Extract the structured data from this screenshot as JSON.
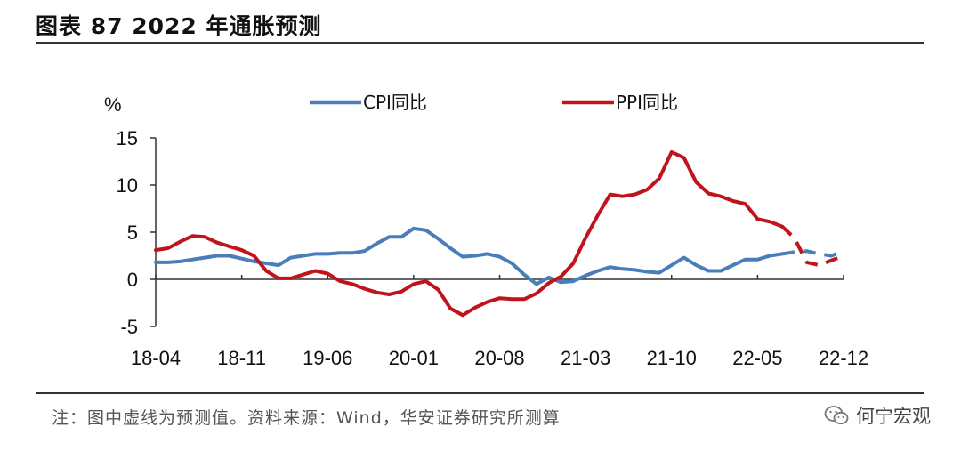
{
  "header": {
    "title": "图表 87 2022 年通胀预测"
  },
  "footer": {
    "note": "注：图中虚线为预测值。资料来源：Wind，华安证券研究所测算",
    "brand": "何宁宏观"
  },
  "colors": {
    "cpi": "#4a7ebb",
    "ppi": "#c0141c",
    "axis": "#333333"
  },
  "chart_data": {
    "type": "line",
    "ylabel": "%",
    "ylim": [
      -5,
      15
    ],
    "yticks": [
      15,
      10,
      5,
      0,
      -5
    ],
    "xlim": [
      "2018-04",
      "2022-12"
    ],
    "xtick_labels": [
      "18-04",
      "18-11",
      "19-06",
      "20-01",
      "20-08",
      "21-03",
      "21-10",
      "22-05",
      "22-12"
    ],
    "legend": [
      "CPI同比",
      "PPI同比"
    ],
    "legend_position": "top",
    "grid": false,
    "forecast_note": "dashed segments are forecasts",
    "series": [
      {
        "name": "CPI同比",
        "x": [
          "2018-04",
          "2018-05",
          "2018-06",
          "2018-07",
          "2018-08",
          "2018-09",
          "2018-10",
          "2018-11",
          "2018-12",
          "2019-01",
          "2019-02",
          "2019-03",
          "2019-04",
          "2019-05",
          "2019-06",
          "2019-07",
          "2019-08",
          "2019-09",
          "2019-10",
          "2019-11",
          "2019-12",
          "2020-01",
          "2020-02",
          "2020-03",
          "2020-04",
          "2020-05",
          "2020-06",
          "2020-07",
          "2020-08",
          "2020-09",
          "2020-10",
          "2020-11",
          "2020-12",
          "2021-01",
          "2021-02",
          "2021-03",
          "2021-04",
          "2021-05",
          "2021-06",
          "2021-07",
          "2021-08",
          "2021-09",
          "2021-10",
          "2021-11",
          "2021-12",
          "2022-01",
          "2022-02",
          "2022-03",
          "2022-04",
          "2022-05",
          "2022-06",
          "2022-07"
        ],
        "values": [
          1.8,
          1.8,
          1.9,
          2.1,
          2.3,
          2.5,
          2.5,
          2.2,
          1.9,
          1.7,
          1.5,
          2.3,
          2.5,
          2.7,
          2.7,
          2.8,
          2.8,
          3.0,
          3.8,
          4.5,
          4.5,
          5.4,
          5.2,
          4.3,
          3.3,
          2.4,
          2.5,
          2.7,
          2.4,
          1.7,
          0.5,
          -0.5,
          0.2,
          -0.3,
          -0.2,
          0.4,
          0.9,
          1.3,
          1.1,
          1.0,
          0.8,
          0.7,
          1.5,
          2.3,
          1.5,
          0.9,
          0.9,
          1.5,
          2.1,
          2.1,
          2.5,
          2.7
        ]
      },
      {
        "name": "CPI同比 forecast",
        "x": [
          "2022-07",
          "2022-08",
          "2022-09",
          "2022-10",
          "2022-11",
          "2022-12"
        ],
        "values": [
          2.7,
          2.9,
          3.0,
          2.7,
          2.5,
          3.0
        ],
        "dashed": true
      },
      {
        "name": "PPI同比",
        "x": [
          "2018-04",
          "2018-05",
          "2018-06",
          "2018-07",
          "2018-08",
          "2018-09",
          "2018-10",
          "2018-11",
          "2018-12",
          "2019-01",
          "2019-02",
          "2019-03",
          "2019-04",
          "2019-05",
          "2019-06",
          "2019-07",
          "2019-08",
          "2019-09",
          "2019-10",
          "2019-11",
          "2019-12",
          "2020-01",
          "2020-02",
          "2020-03",
          "2020-04",
          "2020-05",
          "2020-06",
          "2020-07",
          "2020-08",
          "2020-09",
          "2020-10",
          "2020-11",
          "2020-12",
          "2021-01",
          "2021-02",
          "2021-03",
          "2021-04",
          "2021-05",
          "2021-06",
          "2021-07",
          "2021-08",
          "2021-09",
          "2021-10",
          "2021-11",
          "2021-12",
          "2022-01",
          "2022-02",
          "2022-03",
          "2022-04",
          "2022-05",
          "2022-06",
          "2022-07"
        ],
        "values": [
          3.1,
          3.3,
          4.0,
          4.6,
          4.5,
          3.9,
          3.5,
          3.1,
          2.5,
          0.9,
          0.1,
          0.1,
          0.5,
          0.9,
          0.6,
          -0.2,
          -0.5,
          -1.0,
          -1.4,
          -1.6,
          -1.3,
          -0.5,
          -0.2,
          -1.1,
          -3.1,
          -3.8,
          -3.0,
          -2.4,
          -2.0,
          -2.1,
          -2.1,
          -1.5,
          -0.4,
          0.3,
          1.7,
          4.4,
          6.8,
          9.0,
          8.8,
          9.0,
          9.5,
          10.7,
          13.5,
          12.9,
          10.3,
          9.1,
          8.8,
          8.3,
          8.0,
          6.4,
          6.1,
          5.6
        ]
      },
      {
        "name": "PPI同比 forecast",
        "x": [
          "2022-07",
          "2022-08",
          "2022-09",
          "2022-10",
          "2022-11",
          "2022-12"
        ],
        "values": [
          5.6,
          4.4,
          1.8,
          1.5,
          2.0,
          2.5
        ],
        "dashed": true
      }
    ]
  }
}
